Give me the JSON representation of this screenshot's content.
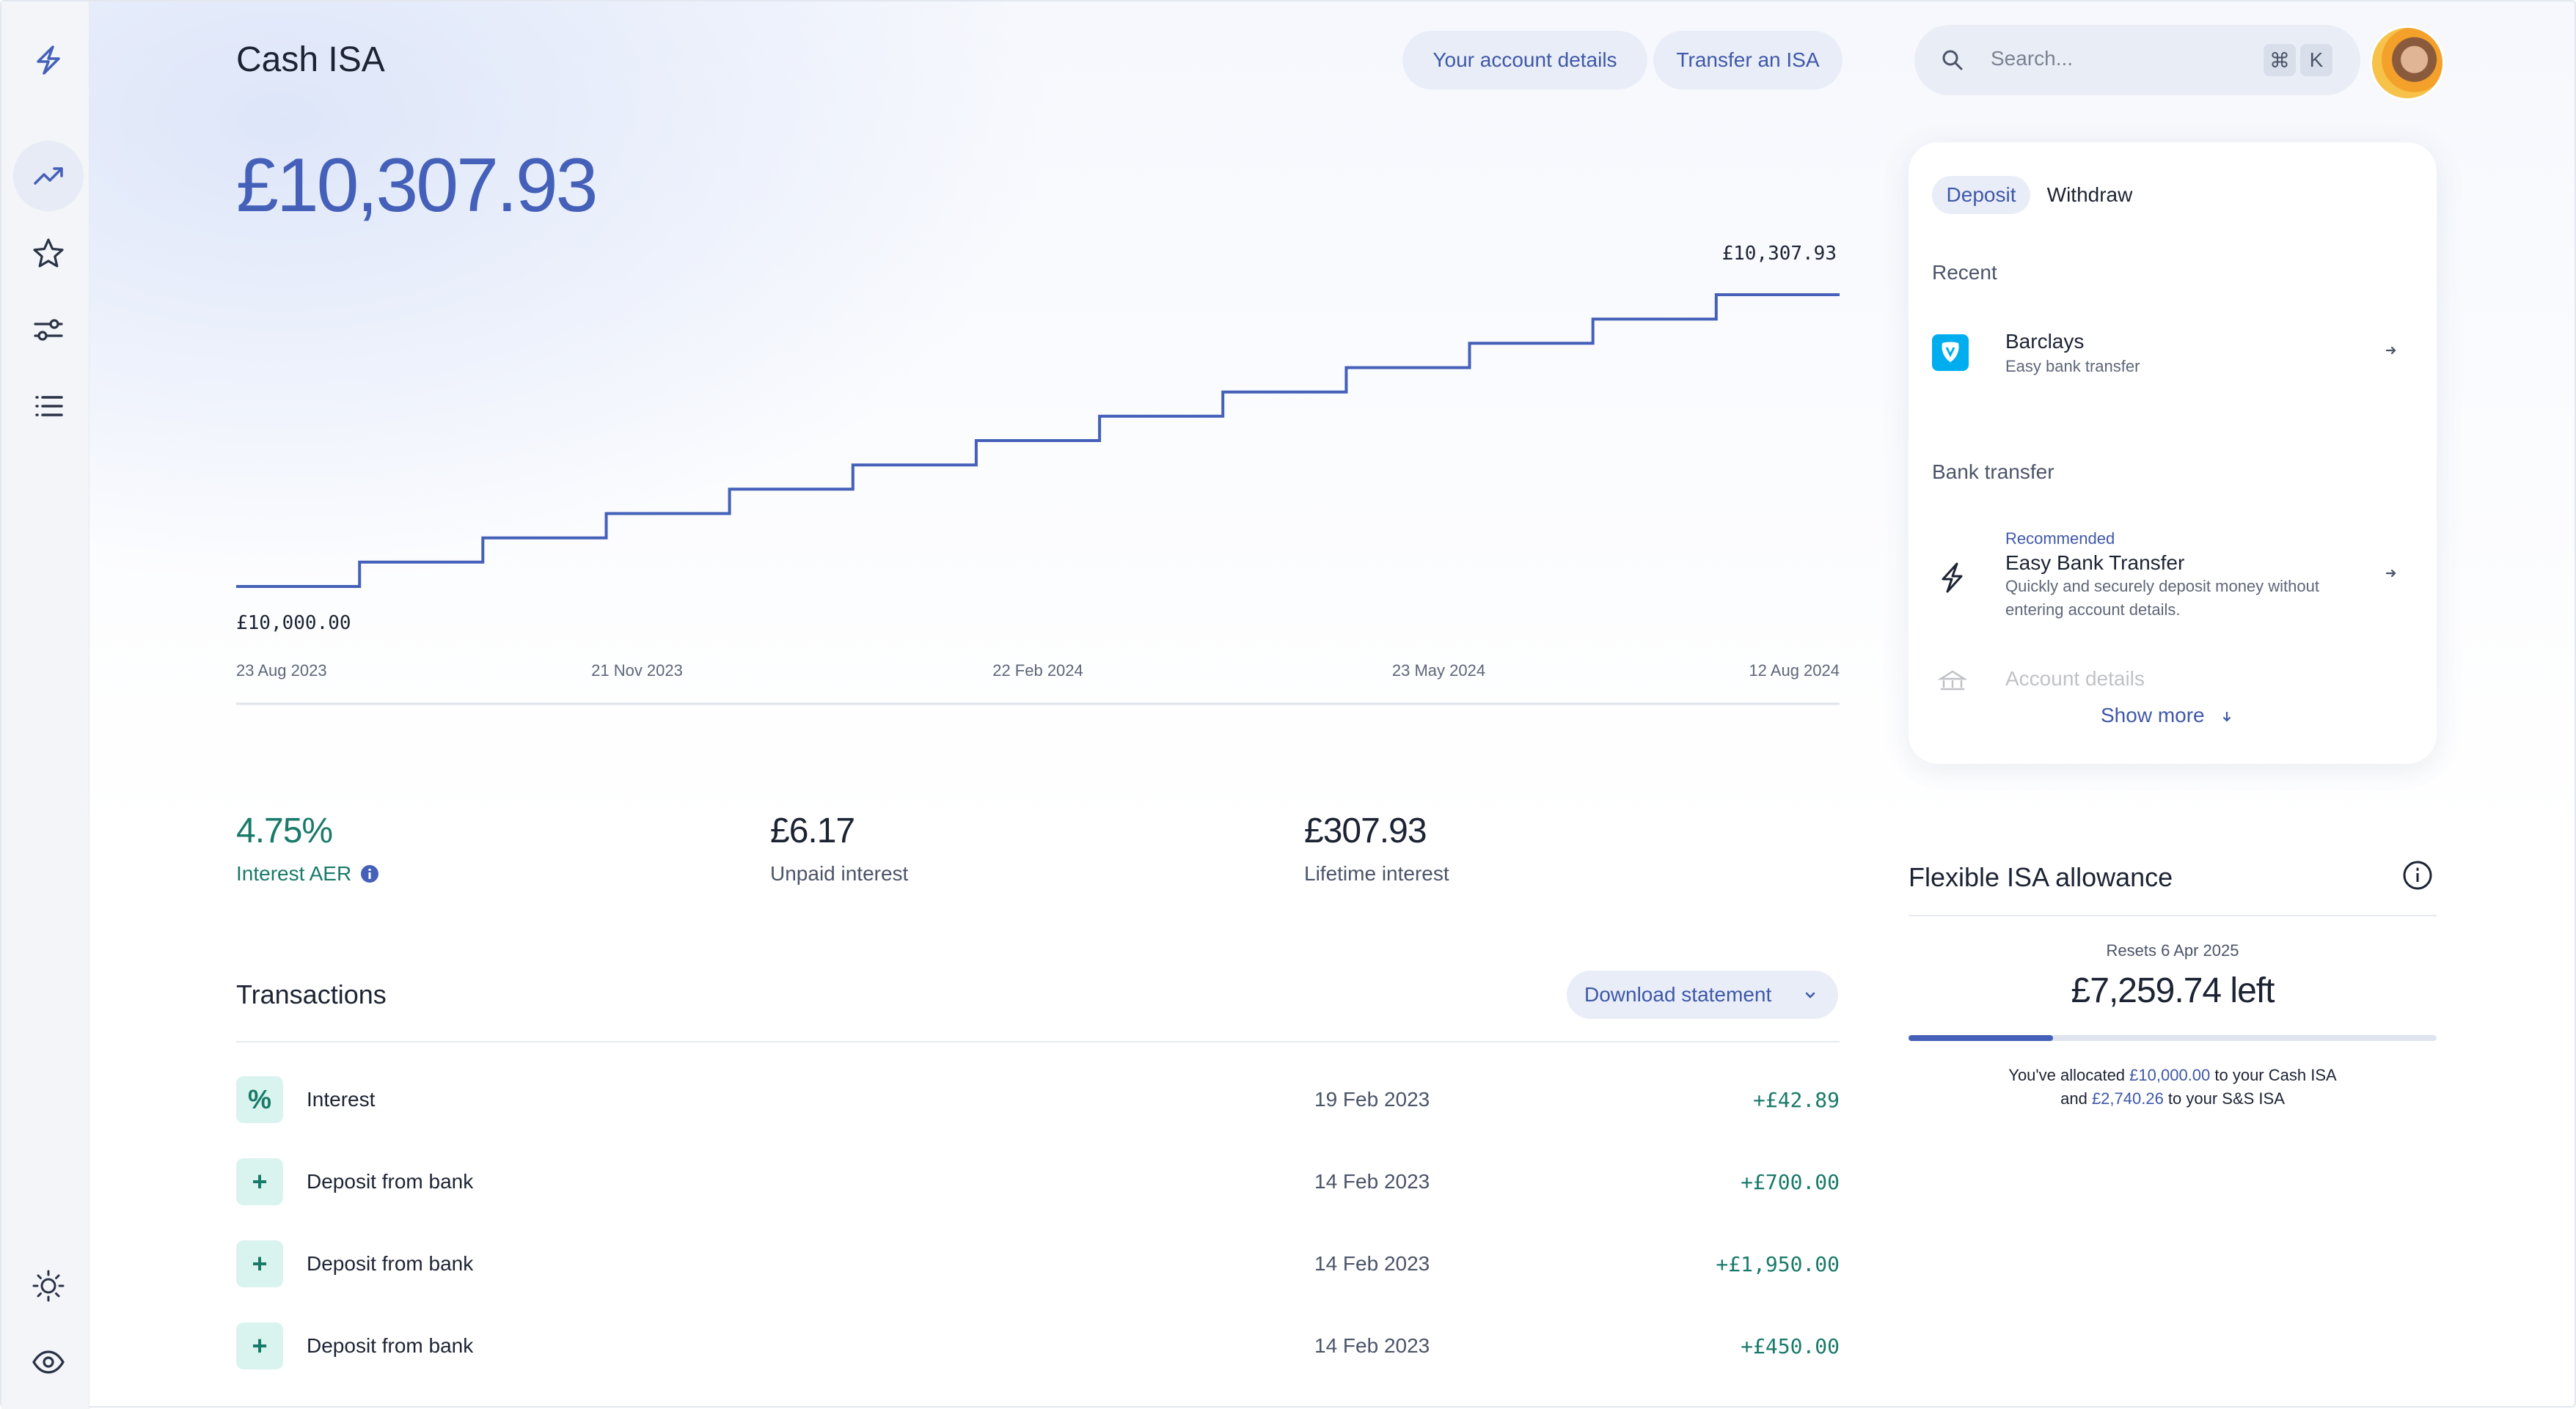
{
  "header": {
    "title": "Cash ISA",
    "account_details_label": "Your account details",
    "transfer_label": "Transfer an ISA",
    "search_placeholder": "Search...",
    "shortcut_cmd": "⌘",
    "shortcut_key": "K"
  },
  "sidebar": {
    "items": [
      {
        "icon": "logo-bolt-icon"
      },
      {
        "icon": "trending-up-icon",
        "active": true
      },
      {
        "icon": "star-icon"
      },
      {
        "icon": "sliders-icon"
      },
      {
        "icon": "list-icon"
      }
    ],
    "bottom": [
      {
        "icon": "sun-icon"
      },
      {
        "icon": "eye-icon"
      }
    ]
  },
  "balance": "£10,307.93",
  "chart_data": {
    "type": "line",
    "step": true,
    "start_label": "£10,000.00",
    "end_label": "£10,307.93",
    "x_ticks": [
      "23 Aug 2023",
      "21 Nov 2023",
      "22 Feb 2024",
      "23 May 2024",
      "12 Aug 2024"
    ],
    "values": [
      10000.0,
      10025.66,
      10051.32,
      10076.98,
      10102.64,
      10128.3,
      10153.96,
      10179.62,
      10205.28,
      10230.94,
      10256.6,
      10282.26,
      10307.93
    ],
    "ylim": [
      10000.0,
      10307.93
    ],
    "grid": false
  },
  "stats": {
    "aer_value": "4.75%",
    "aer_label": "Interest AER",
    "unpaid_value": "£6.17",
    "unpaid_label": "Unpaid interest",
    "lifetime_value": "£307.93",
    "lifetime_label": "Lifetime interest"
  },
  "transactions": {
    "title": "Transactions",
    "download_label": "Download statement",
    "rows": [
      {
        "icon": "%",
        "name": "Interest",
        "date": "19 Feb 2023",
        "amount": "+£42.89"
      },
      {
        "icon": "+",
        "name": "Deposit from bank",
        "date": "14 Feb 2023",
        "amount": "+£700.00"
      },
      {
        "icon": "+",
        "name": "Deposit from bank",
        "date": "14 Feb 2023",
        "amount": "+£1,950.00"
      },
      {
        "icon": "+",
        "name": "Deposit from bank",
        "date": "14 Feb 2023",
        "amount": "+£450.00"
      }
    ]
  },
  "panel": {
    "tab_deposit": "Deposit",
    "tab_withdraw": "Withdraw",
    "recent_label": "Recent",
    "barclays_title": "Barclays",
    "barclays_sub": "Easy bank transfer",
    "bank_transfer_label": "Bank transfer",
    "recommended": "Recommended",
    "ebt_title": "Easy Bank Transfer",
    "ebt_sub": "Quickly and securely deposit money without entering account details.",
    "account_details": "Account details",
    "show_more": "Show more"
  },
  "allowance": {
    "title": "Flexible ISA allowance",
    "resets": "Resets 6 Apr 2025",
    "left": "£7,259.74 left",
    "used_fraction": 0.274,
    "line1_pre": "You've allocated ",
    "line1_amt": "£10,000.00",
    "line1_post": " to your Cash ISA",
    "line2_pre": "and ",
    "line2_amt": "£2,740.26",
    "line2_post": " to your S&S ISA"
  },
  "colors": {
    "accent": "#4560b8",
    "positive": "#197a6a",
    "pill_bg": "#e8edf7"
  }
}
